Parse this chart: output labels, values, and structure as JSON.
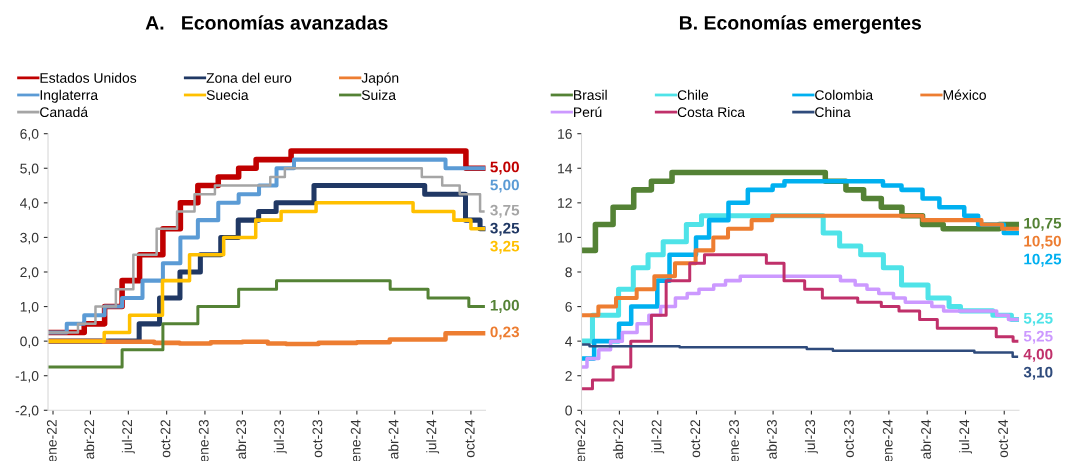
{
  "chart_data": [
    {
      "type": "step",
      "title": "A.   Economías avanzadas",
      "legend": "top",
      "grid": false,
      "xlim": [
        "2021-12-20",
        "2024-11-05"
      ],
      "xticks": [
        {
          "value": "2022-01-01",
          "label": "ene-22"
        },
        {
          "value": "2022-04-01",
          "label": "abr-22"
        },
        {
          "value": "2022-07-01",
          "label": "jul-22"
        },
        {
          "value": "2022-10-01",
          "label": "oct-22"
        },
        {
          "value": "2023-01-01",
          "label": "ene-23"
        },
        {
          "value": "2023-04-01",
          "label": "abr-23"
        },
        {
          "value": "2023-07-01",
          "label": "jul-23"
        },
        {
          "value": "2023-10-01",
          "label": "oct-23"
        },
        {
          "value": "2024-01-01",
          "label": "ene-24"
        },
        {
          "value": "2024-04-01",
          "label": "abr-24"
        },
        {
          "value": "2024-07-01",
          "label": "jul-24"
        },
        {
          "value": "2024-10-01",
          "label": "oct-24"
        }
      ],
      "ylim": [
        -2,
        6
      ],
      "yticks": [
        {
          "value": -2,
          "label": "-2,0"
        },
        {
          "value": -1,
          "label": "-1,0"
        },
        {
          "value": 0,
          "label": "0,0"
        },
        {
          "value": 1,
          "label": "1,0"
        },
        {
          "value": 2,
          "label": "2,0"
        },
        {
          "value": 3,
          "label": "3,0"
        },
        {
          "value": 4,
          "label": "4,0"
        },
        {
          "value": 5,
          "label": "5,0"
        },
        {
          "value": 6,
          "label": "6,0"
        }
      ],
      "series": [
        {
          "name": "Estados Unidos",
          "color": "#c00000",
          "x": [
            "2021-12-20",
            "2022-03-17",
            "2022-05-05",
            "2022-06-16",
            "2022-07-28",
            "2022-09-22",
            "2022-11-03",
            "2022-12-15",
            "2023-02-02",
            "2023-03-23",
            "2023-05-04",
            "2023-07-27",
            "2024-09-19",
            "2024-10-31"
          ],
          "values": [
            0.25,
            0.5,
            1.0,
            1.75,
            2.5,
            3.25,
            4.0,
            4.5,
            4.75,
            5.0,
            5.25,
            5.5,
            5.0,
            5.0
          ],
          "value_labels": [
            null,
            null,
            null,
            null,
            null,
            null,
            null,
            null,
            null,
            null,
            null,
            null,
            null,
            "5,00"
          ]
        },
        {
          "name": "Zona del euro",
          "color": "#203864",
          "x": [
            "2021-12-20",
            "2022-07-27",
            "2022-09-14",
            "2022-11-02",
            "2022-12-21",
            "2023-02-08",
            "2023-03-22",
            "2023-05-10",
            "2023-06-21",
            "2023-09-20",
            "2024-06-12",
            "2024-09-18",
            "2024-10-23",
            "2024-10-31"
          ],
          "values": [
            0.0,
            0.5,
            1.25,
            2.0,
            2.5,
            3.0,
            3.5,
            3.75,
            4.0,
            4.5,
            4.25,
            3.5,
            3.25,
            3.25
          ],
          "value_labels": [
            null,
            null,
            null,
            null,
            null,
            null,
            null,
            null,
            null,
            null,
            null,
            null,
            null,
            "3,25"
          ]
        },
        {
          "name": "Japón",
          "color": "#ed7d31",
          "x": [
            "2021-12-20",
            "2022-05-01",
            "2022-09-01",
            "2022-11-01",
            "2023-01-15",
            "2023-04-01",
            "2023-06-01",
            "2023-07-15",
            "2023-10-01",
            "2024-01-01",
            "2024-03-20",
            "2024-08-01",
            "2024-10-31"
          ],
          "values": [
            0.0,
            -0.02,
            -0.05,
            -0.07,
            -0.03,
            -0.02,
            -0.07,
            -0.08,
            -0.05,
            -0.03,
            0.05,
            0.23,
            0.23
          ],
          "value_labels": [
            null,
            null,
            null,
            null,
            null,
            null,
            null,
            null,
            null,
            null,
            null,
            null,
            "0,23"
          ]
        },
        {
          "name": "Inglaterra",
          "color": "#5b9bd5",
          "x": [
            "2021-12-20",
            "2022-02-03",
            "2022-03-17",
            "2022-05-05",
            "2022-06-16",
            "2022-08-04",
            "2022-09-22",
            "2022-11-03",
            "2022-12-15",
            "2023-02-02",
            "2023-03-23",
            "2023-05-11",
            "2023-06-22",
            "2023-08-03",
            "2024-08-01",
            "2024-10-31"
          ],
          "values": [
            0.25,
            0.5,
            0.75,
            1.0,
            1.25,
            1.75,
            2.25,
            3.0,
            3.5,
            4.0,
            4.25,
            4.5,
            5.0,
            5.25,
            5.0,
            5.0
          ],
          "value_labels": [
            null,
            null,
            null,
            null,
            null,
            null,
            null,
            null,
            null,
            null,
            null,
            null,
            null,
            null,
            null,
            "5,00"
          ]
        },
        {
          "name": "Suecia",
          "color": "#ffc000",
          "x": [
            "2021-12-20",
            "2022-05-04",
            "2022-07-04",
            "2022-09-21",
            "2022-11-25",
            "2023-02-15",
            "2023-05-03",
            "2023-07-03",
            "2023-09-25",
            "2024-05-15",
            "2024-08-21",
            "2024-10-01",
            "2024-10-31"
          ],
          "values": [
            0.0,
            0.25,
            0.75,
            1.75,
            2.5,
            3.0,
            3.5,
            3.75,
            4.0,
            3.75,
            3.5,
            3.25,
            3.25
          ],
          "value_labels": [
            null,
            null,
            null,
            null,
            null,
            null,
            null,
            null,
            null,
            null,
            null,
            null,
            "3,25"
          ]
        },
        {
          "name": "Suiza",
          "color": "#548235",
          "x": [
            "2021-12-20",
            "2022-06-16",
            "2022-09-22",
            "2022-12-15",
            "2023-03-23",
            "2023-06-22",
            "2024-03-21",
            "2024-06-20",
            "2024-09-26",
            "2024-10-31"
          ],
          "values": [
            -0.75,
            -0.25,
            0.5,
            1.0,
            1.5,
            1.75,
            1.5,
            1.25,
            1.0,
            1.0
          ],
          "value_labels": [
            null,
            null,
            null,
            null,
            null,
            null,
            null,
            null,
            null,
            "1,00"
          ]
        },
        {
          "name": "Canadá",
          "color": "#a5a5a5",
          "x": [
            "2021-12-20",
            "2022-03-02",
            "2022-04-13",
            "2022-06-01",
            "2022-07-13",
            "2022-09-07",
            "2022-10-26",
            "2022-12-07",
            "2023-01-25",
            "2023-06-07",
            "2023-07-12",
            "2024-06-05",
            "2024-07-24",
            "2024-09-04",
            "2024-10-23",
            "2024-10-31"
          ],
          "values": [
            0.25,
            0.5,
            1.0,
            1.5,
            2.5,
            3.25,
            3.75,
            4.25,
            4.5,
            4.75,
            5.0,
            4.75,
            4.5,
            4.25,
            3.75,
            3.75
          ],
          "value_labels": [
            null,
            null,
            null,
            null,
            null,
            null,
            null,
            null,
            null,
            null,
            null,
            null,
            null,
            null,
            null,
            "3,75"
          ]
        }
      ]
    },
    {
      "type": "step",
      "title": "B. Economías emergentes",
      "legend": "top",
      "grid": false,
      "xlim": [
        "2022-01-01",
        "2024-11-05"
      ],
      "xticks": [
        {
          "value": "2022-01-01",
          "label": "ene-22"
        },
        {
          "value": "2022-04-01",
          "label": "abr-22"
        },
        {
          "value": "2022-07-01",
          "label": "jul-22"
        },
        {
          "value": "2022-10-01",
          "label": "oct-22"
        },
        {
          "value": "2023-01-01",
          "label": "ene-23"
        },
        {
          "value": "2023-04-01",
          "label": "abr-23"
        },
        {
          "value": "2023-07-01",
          "label": "jul-23"
        },
        {
          "value": "2023-10-01",
          "label": "oct-23"
        },
        {
          "value": "2024-01-01",
          "label": "ene-24"
        },
        {
          "value": "2024-04-01",
          "label": "abr-24"
        },
        {
          "value": "2024-07-01",
          "label": "jul-24"
        },
        {
          "value": "2024-10-01",
          "label": "oct-24"
        }
      ],
      "ylim": [
        0,
        16
      ],
      "yticks": [
        0,
        2,
        4,
        6,
        8,
        10,
        12,
        14,
        16
      ],
      "series": [
        {
          "name": "Brasil",
          "color": "#548235",
          "x": [
            "2022-01-01",
            "2022-02-03",
            "2022-03-17",
            "2022-05-05",
            "2022-06-16",
            "2022-08-04",
            "2023-08-03",
            "2023-09-21",
            "2023-11-02",
            "2023-12-14",
            "2024-02-01",
            "2024-03-21",
            "2024-05-09",
            "2024-09-19",
            "2024-10-31"
          ],
          "values": [
            9.25,
            10.75,
            11.75,
            12.75,
            13.25,
            13.75,
            13.25,
            12.75,
            12.25,
            11.75,
            11.25,
            10.75,
            10.5,
            10.75,
            10.75
          ],
          "value_labels": [
            null,
            null,
            null,
            null,
            null,
            null,
            null,
            null,
            null,
            null,
            null,
            null,
            null,
            null,
            "10,75"
          ]
        },
        {
          "name": "Chile",
          "color": "#4fe3e8",
          "x": [
            "2022-01-01",
            "2022-01-27",
            "2022-03-30",
            "2022-05-04",
            "2022-06-08",
            "2022-07-14",
            "2022-09-07",
            "2022-10-13",
            "2023-07-29",
            "2023-09-06",
            "2023-10-26",
            "2023-12-19",
            "2024-01-31",
            "2024-04-03",
            "2024-05-23",
            "2024-06-19",
            "2024-09-04",
            "2024-10-18",
            "2024-10-31"
          ],
          "values": [
            4.0,
            5.5,
            7.0,
            8.25,
            9.0,
            9.75,
            10.75,
            11.25,
            10.25,
            9.5,
            9.0,
            8.25,
            7.25,
            6.5,
            6.0,
            5.75,
            5.5,
            5.25,
            5.25
          ],
          "value_labels": [
            null,
            null,
            null,
            null,
            null,
            null,
            null,
            null,
            null,
            null,
            null,
            null,
            null,
            null,
            null,
            null,
            null,
            null,
            "5,25"
          ]
        },
        {
          "name": "Colombia",
          "color": "#00b0f0",
          "x": [
            "2022-01-01",
            "2022-01-31",
            "2022-03-31",
            "2022-04-29",
            "2022-06-30",
            "2022-07-29",
            "2022-09-30",
            "2022-10-31",
            "2022-12-16",
            "2023-01-31",
            "2023-03-31",
            "2023-04-28",
            "2023-12-18",
            "2024-01-31",
            "2024-03-21",
            "2024-04-30",
            "2024-06-28",
            "2024-07-31",
            "2024-09-30",
            "2024-10-31"
          ],
          "values": [
            3.0,
            4.0,
            5.0,
            6.0,
            7.5,
            9.0,
            10.0,
            11.0,
            12.0,
            12.75,
            13.0,
            13.25,
            13.0,
            12.75,
            12.25,
            11.75,
            11.25,
            10.75,
            10.25,
            10.25
          ],
          "value_labels": [
            null,
            null,
            null,
            null,
            null,
            null,
            null,
            null,
            null,
            null,
            null,
            null,
            null,
            null,
            null,
            null,
            null,
            null,
            null,
            "10,25"
          ]
        },
        {
          "name": "México",
          "color": "#ed7d31",
          "x": [
            "2022-01-01",
            "2022-02-10",
            "2022-03-24",
            "2022-05-12",
            "2022-06-23",
            "2022-08-11",
            "2022-09-29",
            "2022-11-10",
            "2022-12-15",
            "2023-02-09",
            "2023-03-30",
            "2024-03-21",
            "2024-06-27",
            "2024-08-08",
            "2024-09-26",
            "2024-10-31"
          ],
          "values": [
            5.5,
            6.0,
            6.5,
            7.0,
            7.75,
            8.5,
            9.25,
            10.0,
            10.5,
            11.0,
            11.25,
            11.0,
            11.0,
            10.75,
            10.5,
            10.5
          ],
          "value_labels": [
            null,
            null,
            null,
            null,
            null,
            null,
            null,
            null,
            null,
            null,
            null,
            null,
            null,
            null,
            null,
            "10,50"
          ]
        },
        {
          "name": "Perú",
          "color": "#cc99ff",
          "x": [
            "2022-01-01",
            "2022-01-14",
            "2022-02-11",
            "2022-03-11",
            "2022-04-08",
            "2022-05-13",
            "2022-06-10",
            "2022-07-08",
            "2022-08-12",
            "2022-09-09",
            "2022-10-07",
            "2022-11-11",
            "2022-12-09",
            "2023-01-13",
            "2023-09-08",
            "2023-10-13",
            "2023-11-10",
            "2023-12-08",
            "2024-01-12",
            "2024-02-09",
            "2024-04-12",
            "2024-05-10",
            "2024-09-13",
            "2024-10-11",
            "2024-10-31"
          ],
          "values": [
            2.5,
            3.0,
            3.5,
            4.0,
            4.5,
            5.0,
            5.5,
            6.0,
            6.5,
            6.75,
            7.0,
            7.25,
            7.5,
            7.75,
            7.5,
            7.25,
            7.0,
            6.75,
            6.5,
            6.25,
            6.0,
            5.75,
            5.5,
            5.25,
            5.25
          ],
          "value_labels": [
            null,
            null,
            null,
            null,
            null,
            null,
            null,
            null,
            null,
            null,
            null,
            null,
            null,
            null,
            null,
            null,
            null,
            null,
            null,
            null,
            null,
            null,
            null,
            null,
            "5,25"
          ]
        },
        {
          "name": "Costa Rica",
          "color": "#c0306a",
          "x": [
            "2022-01-01",
            "2022-01-27",
            "2022-03-17",
            "2022-04-28",
            "2022-06-16",
            "2022-07-21",
            "2022-09-15",
            "2022-10-20",
            "2023-03-16",
            "2023-04-27",
            "2023-06-15",
            "2023-07-27",
            "2023-10-19",
            "2023-12-14",
            "2024-01-25",
            "2024-03-14",
            "2024-04-25",
            "2024-09-12",
            "2024-10-22",
            "2024-10-31"
          ],
          "values": [
            1.25,
            1.75,
            2.5,
            4.0,
            5.5,
            7.5,
            8.5,
            9.0,
            8.5,
            7.5,
            7.0,
            6.5,
            6.25,
            6.0,
            5.75,
            5.25,
            4.75,
            4.25,
            4.0,
            4.0
          ],
          "value_labels": [
            null,
            null,
            null,
            null,
            null,
            null,
            null,
            null,
            null,
            null,
            null,
            null,
            null,
            null,
            null,
            null,
            null,
            null,
            null,
            "4,00"
          ]
        },
        {
          "name": "China",
          "color": "#2f4b7c",
          "x": [
            "2022-01-01",
            "2022-01-20",
            "2022-08-22",
            "2023-06-20",
            "2023-08-21",
            "2024-07-22",
            "2024-10-21",
            "2024-10-31"
          ],
          "values": [
            3.8,
            3.7,
            3.65,
            3.55,
            3.45,
            3.35,
            3.1,
            3.1
          ],
          "value_labels": [
            null,
            null,
            null,
            null,
            null,
            null,
            null,
            "3,10"
          ]
        }
      ]
    }
  ]
}
